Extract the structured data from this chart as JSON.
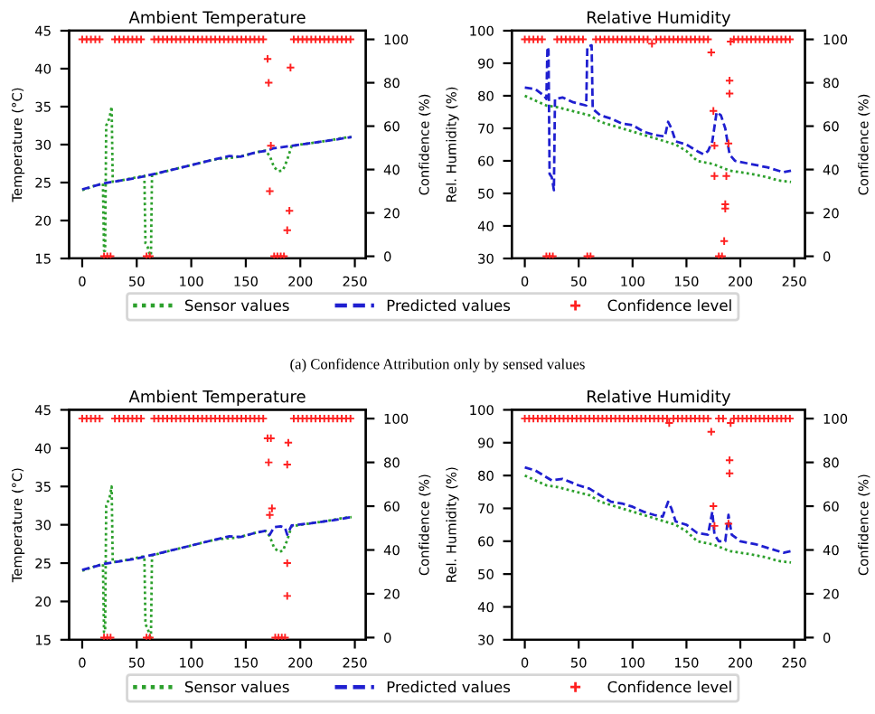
{
  "chart_data": [
    {
      "type": "line",
      "title": "Ambient Temperature",
      "ylabel": "Temperature (°C)",
      "y2label": "Confidence (%)",
      "xlim": [
        -12,
        260
      ],
      "xticks": [
        0,
        50,
        100,
        150,
        200,
        250
      ],
      "ylim": [
        15,
        45
      ],
      "yticks": [
        15,
        20,
        25,
        30,
        35,
        40,
        45
      ],
      "y2lim": [
        -1,
        104
      ],
      "y2ticks": [
        0,
        20,
        40,
        60,
        80,
        100
      ],
      "legend": "bottom",
      "annotations": [
        "(a) Confidence Attribution only by sensed values"
      ],
      "series": [
        {
          "name": "Sensor values",
          "color": "#2ca02c",
          "line_style": "dotted",
          "x": [
            0,
            10,
            19,
            20,
            21,
            22,
            25,
            27,
            28,
            40,
            57,
            58,
            60,
            62,
            63,
            64,
            80,
            100,
            120,
            130,
            140,
            150,
            160,
            168,
            172,
            176,
            180,
            184,
            188,
            192,
            200,
            220,
            240,
            247
          ],
          "values": [
            24,
            24.5,
            24.9,
            16,
            16,
            32.5,
            33.5,
            35,
            25.1,
            25.4,
            25.9,
            17,
            16.5,
            15.5,
            15,
            26,
            26.6,
            27.3,
            28,
            28.2,
            28.3,
            28.6,
            29,
            29.2,
            28.5,
            27,
            26.5,
            26.6,
            28,
            29.8,
            30,
            30.4,
            30.9,
            31
          ]
        },
        {
          "name": "Predicted values",
          "color": "#1f1fd0",
          "line_style": "dashed",
          "x": [
            0,
            20,
            50,
            80,
            100,
            120,
            135,
            145,
            160,
            170,
            175,
            190,
            210,
            230,
            247
          ],
          "values": [
            24.1,
            24.9,
            25.6,
            26.6,
            27.3,
            28,
            28.5,
            28.4,
            29,
            29.2,
            29.5,
            29.8,
            30.2,
            30.6,
            31
          ]
        },
        {
          "name": "Confidence level",
          "type": "scatter",
          "axis": "y2",
          "marker": "cross",
          "color": "#ff2020",
          "x": [
            0,
            4,
            8,
            12,
            16,
            20,
            23,
            26,
            30,
            34,
            38,
            42,
            46,
            50,
            54,
            59,
            62,
            66,
            70,
            74,
            78,
            82,
            86,
            90,
            94,
            98,
            102,
            106,
            110,
            114,
            118,
            122,
            126,
            130,
            134,
            138,
            142,
            146,
            150,
            154,
            158,
            162,
            166,
            170,
            171,
            172,
            173,
            176,
            179,
            182,
            185,
            188,
            190,
            191,
            194,
            198,
            202,
            206,
            210,
            214,
            218,
            222,
            226,
            230,
            234,
            238,
            242,
            246
          ],
          "values": [
            100,
            100,
            100,
            100,
            100,
            0,
            0,
            0,
            100,
            100,
            100,
            100,
            100,
            100,
            100,
            0,
            0,
            100,
            100,
            100,
            100,
            100,
            100,
            100,
            100,
            100,
            100,
            100,
            100,
            100,
            100,
            100,
            100,
            100,
            100,
            100,
            100,
            100,
            100,
            100,
            100,
            100,
            100,
            91,
            80,
            30,
            51,
            0,
            0,
            0,
            0,
            12,
            21,
            87,
            100,
            100,
            100,
            100,
            100,
            100,
            100,
            100,
            100,
            100,
            100,
            100,
            100,
            100
          ]
        }
      ]
    },
    {
      "type": "line",
      "title": "Relative Humidity",
      "ylabel": "Rel. Humidity (%)",
      "y2label": "Confidence (%)",
      "xlim": [
        -12,
        260
      ],
      "xticks": [
        0,
        50,
        100,
        150,
        200,
        250
      ],
      "ylim": [
        30,
        100
      ],
      "yticks": [
        30,
        40,
        50,
        60,
        70,
        80,
        90,
        100
      ],
      "y2lim": [
        -1,
        104
      ],
      "y2ticks": [
        0,
        20,
        40,
        60,
        80,
        100
      ],
      "legend": "bottom",
      "series": [
        {
          "name": "Sensor values",
          "color": "#2ca02c",
          "line_style": "dotted",
          "x": [
            0,
            20,
            30,
            60,
            70,
            90,
            110,
            130,
            140,
            150,
            160,
            175,
            190,
            210,
            225,
            235,
            247
          ],
          "values": [
            80,
            77,
            76.5,
            74,
            72,
            70,
            68,
            66,
            65,
            63,
            60,
            59,
            57,
            56,
            55,
            54,
            53.5
          ]
        },
        {
          "name": "Predicted values",
          "color": "#1f1fd0",
          "line_style": "dashed",
          "x": [
            0,
            10,
            18,
            20,
            21,
            22,
            23,
            25,
            27,
            28,
            35,
            45,
            57,
            58,
            62,
            63,
            70,
            80,
            90,
            100,
            110,
            120,
            130,
            133,
            136,
            140,
            150,
            160,
            166,
            170,
            174,
            178,
            182,
            186,
            190,
            195,
            210,
            225,
            235,
            240,
            247
          ],
          "values": [
            82.5,
            82,
            80,
            79,
            95,
            94,
            56,
            55,
            51,
            79,
            79.5,
            78,
            77,
            95,
            95.5,
            76,
            74,
            73,
            71.5,
            71,
            69,
            68,
            67.5,
            72,
            70,
            66,
            65,
            63,
            62,
            63,
            66,
            75,
            74,
            70,
            62,
            60,
            59,
            58,
            57,
            56.5,
            57
          ]
        },
        {
          "name": "Confidence level",
          "type": "scatter",
          "axis": "y2",
          "marker": "cross",
          "color": "#ff2020",
          "x": [
            0,
            4,
            8,
            12,
            16,
            20,
            23,
            26,
            30,
            34,
            38,
            42,
            46,
            50,
            54,
            58,
            61,
            66,
            70,
            74,
            78,
            82,
            86,
            90,
            94,
            98,
            102,
            106,
            110,
            114,
            118,
            122,
            126,
            130,
            134,
            138,
            142,
            146,
            150,
            154,
            158,
            162,
            166,
            170,
            173,
            175,
            176,
            176,
            180,
            183,
            185,
            186,
            186,
            187,
            189,
            190,
            190,
            191,
            194,
            198,
            202,
            206,
            210,
            214,
            218,
            222,
            226,
            230,
            234,
            238,
            242,
            246
          ],
          "values": [
            100,
            100,
            100,
            100,
            100,
            0,
            0,
            0,
            100,
            100,
            100,
            100,
            100,
            100,
            100,
            0,
            0,
            100,
            100,
            100,
            100,
            100,
            100,
            100,
            100,
            100,
            100,
            100,
            100,
            100,
            98,
            100,
            100,
            100,
            100,
            100,
            100,
            100,
            100,
            100,
            100,
            100,
            100,
            100,
            94,
            67,
            51,
            37,
            0,
            0,
            7,
            24,
            22,
            37,
            52,
            81,
            75,
            99,
            100,
            100,
            100,
            100,
            100,
            100,
            100,
            100,
            100,
            100,
            100,
            100,
            100,
            100
          ]
        }
      ]
    },
    {
      "type": "line",
      "title": "Ambient Temperature",
      "ylabel": "Temperature (°C)",
      "y2label": "Confidence (%)",
      "xlim": [
        -12,
        260
      ],
      "xticks": [
        0,
        50,
        100,
        150,
        200,
        250
      ],
      "ylim": [
        15,
        45
      ],
      "yticks": [
        15,
        20,
        25,
        30,
        35,
        40,
        45
      ],
      "y2lim": [
        -1,
        104
      ],
      "y2ticks": [
        0,
        20,
        40,
        60,
        80,
        100
      ],
      "legend": "bottom",
      "series": [
        {
          "name": "Sensor values",
          "color": "#2ca02c",
          "line_style": "dotted",
          "x": [
            0,
            10,
            19,
            20,
            21,
            22,
            25,
            27,
            28,
            40,
            57,
            58,
            60,
            62,
            63,
            64,
            80,
            100,
            120,
            130,
            140,
            150,
            160,
            168,
            172,
            176,
            180,
            184,
            188,
            192,
            200,
            220,
            240,
            247
          ],
          "values": [
            24,
            24.5,
            24.9,
            16,
            16,
            32.5,
            33.5,
            35,
            25.1,
            25.4,
            25.9,
            17,
            16.5,
            15.5,
            15,
            26,
            26.6,
            27.3,
            28,
            28.2,
            28.3,
            28.6,
            29,
            29.2,
            28.5,
            27,
            26.5,
            26.6,
            28,
            29.8,
            30,
            30.4,
            30.9,
            31
          ]
        },
        {
          "name": "Predicted values",
          "color": "#1f1fd0",
          "line_style": "dashed",
          "x": [
            0,
            20,
            50,
            80,
            100,
            120,
            135,
            145,
            160,
            168,
            172,
            176,
            182,
            186,
            188,
            192,
            210,
            230,
            247
          ],
          "values": [
            24.1,
            24.9,
            25.6,
            26.6,
            27.3,
            28,
            28.5,
            28.4,
            29,
            29.2,
            28.7,
            29.7,
            29.8,
            29.6,
            28.7,
            29.9,
            30.2,
            30.6,
            31
          ]
        },
        {
          "name": "Confidence level",
          "type": "scatter",
          "axis": "y2",
          "marker": "cross",
          "color": "#ff2020",
          "x": [
            0,
            4,
            8,
            12,
            16,
            20,
            23,
            26,
            30,
            34,
            38,
            42,
            46,
            50,
            54,
            59,
            62,
            66,
            70,
            74,
            78,
            82,
            86,
            90,
            94,
            98,
            102,
            106,
            110,
            114,
            118,
            122,
            126,
            130,
            134,
            138,
            142,
            146,
            150,
            154,
            158,
            162,
            166,
            170,
            171,
            172,
            173,
            174,
            177,
            180,
            183,
            186,
            188,
            188,
            188,
            189,
            194,
            198,
            202,
            206,
            210,
            214,
            218,
            222,
            226,
            230,
            234,
            238,
            242,
            246
          ],
          "values": [
            100,
            100,
            100,
            100,
            100,
            0,
            0,
            0,
            100,
            100,
            100,
            100,
            100,
            100,
            100,
            0,
            0,
            100,
            100,
            100,
            100,
            100,
            100,
            100,
            100,
            100,
            100,
            100,
            100,
            100,
            100,
            100,
            100,
            100,
            100,
            100,
            100,
            100,
            100,
            100,
            100,
            100,
            100,
            91,
            80,
            56,
            91,
            59,
            0,
            0,
            0,
            0,
            79,
            34,
            19,
            89,
            100,
            100,
            100,
            100,
            100,
            100,
            100,
            100,
            100,
            100,
            100,
            100,
            100,
            100
          ]
        }
      ]
    },
    {
      "type": "line",
      "title": "Relative Humidity",
      "ylabel": "Rel. Humidity (%)",
      "y2label": "Confidence (%)",
      "xlim": [
        -12,
        260
      ],
      "xticks": [
        0,
        50,
        100,
        150,
        200,
        250
      ],
      "ylim": [
        30,
        100
      ],
      "yticks": [
        30,
        40,
        50,
        60,
        70,
        80,
        90,
        100
      ],
      "y2lim": [
        -1,
        104
      ],
      "y2ticks": [
        0,
        20,
        40,
        60,
        80,
        100
      ],
      "legend": "bottom",
      "series": [
        {
          "name": "Sensor values",
          "color": "#2ca02c",
          "line_style": "dotted",
          "x": [
            0,
            20,
            30,
            60,
            70,
            90,
            110,
            130,
            140,
            150,
            160,
            175,
            190,
            210,
            225,
            235,
            247
          ],
          "values": [
            80,
            77,
            76.5,
            74,
            72,
            70,
            68,
            66,
            65,
            63,
            60,
            59,
            57,
            56,
            55,
            54,
            53.5
          ]
        },
        {
          "name": "Predicted values",
          "color": "#1f1fd0",
          "line_style": "dashed",
          "x": [
            0,
            10,
            20,
            25,
            35,
            50,
            60,
            70,
            80,
            90,
            100,
            110,
            120,
            128,
            133,
            136,
            140,
            150,
            160,
            170,
            174,
            176,
            180,
            186,
            189,
            192,
            200,
            215,
            230,
            240,
            247
          ],
          "values": [
            82.5,
            81.5,
            79.5,
            78.5,
            79,
            77,
            76,
            74,
            72,
            71.5,
            70.5,
            69,
            68,
            67.5,
            72,
            70,
            66,
            65,
            62.5,
            62,
            69,
            62,
            60,
            60,
            68,
            62,
            60,
            59,
            57.5,
            56.5,
            57
          ]
        },
        {
          "name": "Confidence level",
          "type": "scatter",
          "axis": "y2",
          "marker": "cross",
          "color": "#ff2020",
          "x": [
            0,
            4,
            8,
            12,
            16,
            20,
            24,
            28,
            32,
            36,
            40,
            44,
            48,
            52,
            56,
            60,
            64,
            68,
            72,
            76,
            80,
            84,
            88,
            92,
            96,
            100,
            104,
            108,
            112,
            116,
            120,
            124,
            128,
            132,
            134,
            138,
            142,
            146,
            150,
            154,
            158,
            162,
            166,
            170,
            173,
            175,
            176,
            180,
            184,
            189,
            190,
            190,
            191,
            194,
            198,
            202,
            206,
            210,
            214,
            218,
            222,
            226,
            230,
            234,
            238,
            242,
            246
          ],
          "values": [
            100,
            100,
            100,
            100,
            100,
            100,
            100,
            100,
            100,
            100,
            100,
            100,
            100,
            100,
            100,
            100,
            100,
            100,
            100,
            100,
            100,
            100,
            100,
            100,
            100,
            100,
            100,
            100,
            100,
            100,
            100,
            100,
            100,
            100,
            98,
            100,
            100,
            100,
            100,
            100,
            100,
            100,
            100,
            100,
            94,
            60,
            51,
            100,
            100,
            52,
            81,
            75,
            98,
            100,
            100,
            100,
            100,
            100,
            100,
            100,
            100,
            100,
            100,
            100,
            100,
            100,
            100
          ]
        }
      ]
    }
  ]
}
